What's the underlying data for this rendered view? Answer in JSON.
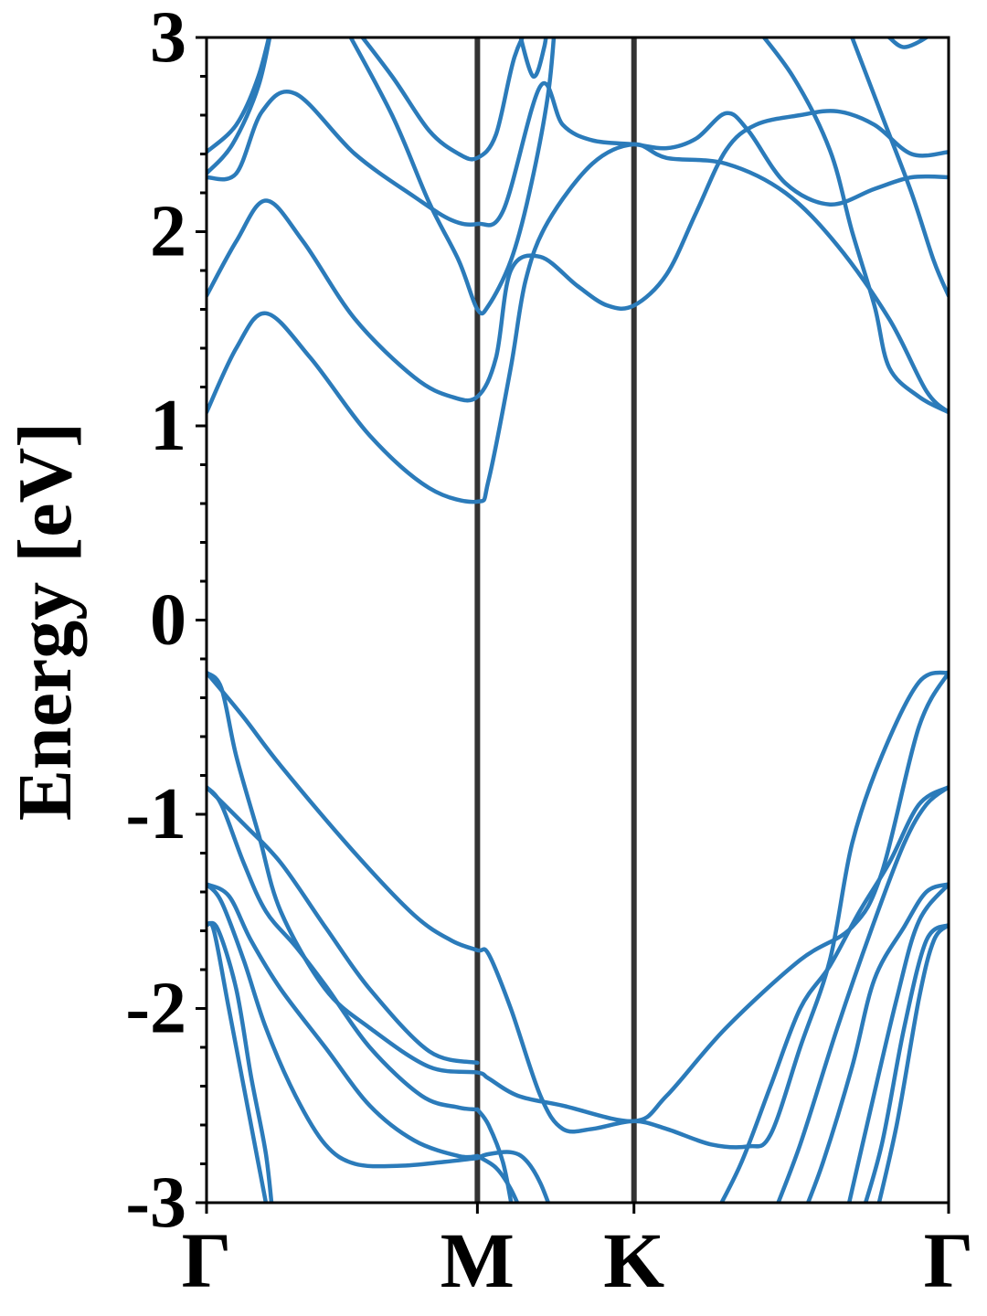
{
  "chart_data": {
    "type": "line",
    "title": "",
    "xlabel": "",
    "ylabel": "Energy [eV]",
    "ylim": [
      -3,
      3
    ],
    "yticks": [
      {
        "value": 3,
        "label": "3"
      },
      {
        "value": 2,
        "label": "2"
      },
      {
        "value": 1,
        "label": "1"
      },
      {
        "value": 0,
        "label": "0"
      },
      {
        "value": -1,
        "label": "-1"
      },
      {
        "value": -2,
        "label": "-2"
      },
      {
        "value": -3,
        "label": "-3"
      }
    ],
    "minor_tick_step": 0.2,
    "kpoints": [
      {
        "label": "Γ",
        "position": 0
      },
      {
        "label": "M",
        "position": 0.365
      },
      {
        "label": "K",
        "position": 0.576
      },
      {
        "label": "Γ",
        "position": 1
      }
    ],
    "xlim": [
      0,
      1
    ],
    "line_color": "#2b7bba",
    "kline_color": "#333333",
    "series": [
      {
        "points": [
          [
            0,
            2.41
          ],
          [
            0.04,
            2.55
          ],
          [
            0.07,
            2.8
          ],
          [
            0.09,
            3.1
          ]
        ]
      },
      {
        "points": [
          [
            0,
            2.3
          ],
          [
            0.035,
            2.45
          ],
          [
            0.07,
            2.75
          ],
          [
            0.09,
            3.1
          ]
        ]
      },
      {
        "points": [
          [
            0,
            2.28
          ],
          [
            0.04,
            2.3
          ],
          [
            0.075,
            2.62
          ],
          [
            0.12,
            2.71
          ],
          [
            0.2,
            2.4
          ],
          [
            0.28,
            2.18
          ],
          [
            0.33,
            2.06
          ],
          [
            0.365,
            2.04
          ],
          [
            0.4,
            2.11
          ],
          [
            0.45,
            2.75
          ],
          [
            0.48,
            2.55
          ],
          [
            0.52,
            2.47
          ],
          [
            0.576,
            2.45
          ],
          [
            0.62,
            2.43
          ],
          [
            0.66,
            2.48
          ],
          [
            0.7,
            2.61
          ],
          [
            0.73,
            2.52
          ],
          [
            0.78,
            2.25
          ],
          [
            0.84,
            2.14
          ],
          [
            0.9,
            2.22
          ],
          [
            0.95,
            2.28
          ],
          [
            1,
            2.28
          ]
        ]
      },
      {
        "points": [
          [
            0,
            1.67
          ],
          [
            0.04,
            1.95
          ],
          [
            0.08,
            2.16
          ],
          [
            0.13,
            1.95
          ],
          [
            0.2,
            1.55
          ],
          [
            0.28,
            1.25
          ],
          [
            0.33,
            1.15
          ],
          [
            0.365,
            1.15
          ],
          [
            0.39,
            1.35
          ],
          [
            0.41,
            1.8
          ],
          [
            0.45,
            1.87
          ],
          [
            0.5,
            1.72
          ],
          [
            0.54,
            1.62
          ],
          [
            0.576,
            1.62
          ],
          [
            0.62,
            1.78
          ],
          [
            0.66,
            2.1
          ],
          [
            0.7,
            2.42
          ],
          [
            0.74,
            2.55
          ],
          [
            0.8,
            2.6
          ],
          [
            0.85,
            2.62
          ],
          [
            0.9,
            2.55
          ],
          [
            0.95,
            2.4
          ],
          [
            1,
            2.41
          ]
        ]
      },
      {
        "points": [
          [
            0,
            1.07
          ],
          [
            0.04,
            1.4
          ],
          [
            0.08,
            1.58
          ],
          [
            0.14,
            1.35
          ],
          [
            0.22,
            0.95
          ],
          [
            0.3,
            0.68
          ],
          [
            0.365,
            0.61
          ],
          [
            0.38,
            0.72
          ],
          [
            0.41,
            1.3
          ],
          [
            0.43,
            1.75
          ],
          [
            0.46,
            2.05
          ],
          [
            0.52,
            2.35
          ],
          [
            0.576,
            2.45
          ],
          [
            0.62,
            2.38
          ],
          [
            0.7,
            2.35
          ],
          [
            0.78,
            2.2
          ],
          [
            0.85,
            1.93
          ],
          [
            0.92,
            1.55
          ],
          [
            0.97,
            1.18
          ],
          [
            1,
            1.07
          ]
        ]
      },
      {
        "points": [
          [
            0.19,
            3.1
          ],
          [
            0.25,
            2.8
          ],
          [
            0.3,
            2.52
          ],
          [
            0.34,
            2.4
          ],
          [
            0.365,
            2.38
          ],
          [
            0.39,
            2.5
          ],
          [
            0.415,
            2.9
          ],
          [
            0.44,
            3.1
          ]
        ]
      },
      {
        "points": [
          [
            0.18,
            3.1
          ],
          [
            0.25,
            2.6
          ],
          [
            0.3,
            2.15
          ],
          [
            0.34,
            1.85
          ],
          [
            0.365,
            1.6
          ],
          [
            0.38,
            1.62
          ],
          [
            0.41,
            1.85
          ],
          [
            0.435,
            2.2
          ],
          [
            0.46,
            2.7
          ],
          [
            0.47,
            3.1
          ]
        ]
      },
      {
        "points": [
          [
            0.42,
            3.05
          ],
          [
            0.44,
            2.8
          ],
          [
            0.455,
            2.95
          ],
          [
            0.46,
            3.1
          ]
        ]
      },
      {
        "points": [
          [
            0.86,
            3.1
          ],
          [
            0.91,
            2.6
          ],
          [
            0.95,
            2.2
          ],
          [
            0.98,
            1.85
          ],
          [
            1,
            1.67
          ]
        ]
      },
      {
        "points": [
          [
            0.73,
            3.1
          ],
          [
            0.79,
            2.8
          ],
          [
            0.84,
            2.42
          ],
          [
            0.87,
            2.0
          ],
          [
            0.9,
            1.62
          ],
          [
            0.92,
            1.3
          ],
          [
            0.96,
            1.15
          ],
          [
            1,
            1.07
          ]
        ]
      },
      {
        "points": [
          [
            0.92,
            3.0
          ],
          [
            0.94,
            2.95
          ],
          [
            0.97,
            3.0
          ],
          [
            0.98,
            3.05
          ]
        ]
      },
      {
        "points": [
          [
            0,
            -0.27
          ],
          [
            0.05,
            -0.5
          ],
          [
            0.1,
            -0.75
          ],
          [
            0.2,
            -1.2
          ],
          [
            0.28,
            -1.52
          ],
          [
            0.33,
            -1.65
          ],
          [
            0.365,
            -1.7
          ],
          [
            0.38,
            -1.72
          ],
          [
            0.41,
            -2.0
          ],
          [
            0.45,
            -2.45
          ],
          [
            0.48,
            -2.62
          ],
          [
            0.52,
            -2.62
          ],
          [
            0.576,
            -2.58
          ],
          [
            0.62,
            -2.62
          ],
          [
            0.68,
            -2.7
          ],
          [
            0.73,
            -2.71
          ],
          [
            0.76,
            -2.65
          ],
          [
            0.8,
            -2.2
          ],
          [
            0.84,
            -1.75
          ],
          [
            0.87,
            -1.15
          ],
          [
            0.91,
            -0.7
          ],
          [
            0.96,
            -0.32
          ],
          [
            1,
            -0.27
          ]
        ]
      },
      {
        "points": [
          [
            0,
            -0.27
          ],
          [
            0.02,
            -0.35
          ],
          [
            0.04,
            -0.7
          ],
          [
            0.07,
            -1.1
          ],
          [
            0.1,
            -1.5
          ],
          [
            0.16,
            -1.9
          ],
          [
            0.22,
            -2.1
          ],
          [
            0.3,
            -2.3
          ],
          [
            0.365,
            -2.33
          ],
          [
            0.38,
            -2.36
          ],
          [
            0.42,
            -2.45
          ],
          [
            0.48,
            -2.5
          ],
          [
            0.576,
            -2.58
          ],
          [
            0.62,
            -2.45
          ],
          [
            0.7,
            -2.1
          ],
          [
            0.8,
            -1.75
          ],
          [
            0.87,
            -1.58
          ],
          [
            0.91,
            -1.3
          ],
          [
            0.96,
            -0.55
          ],
          [
            1,
            -0.27
          ]
        ]
      },
      {
        "points": [
          [
            0,
            -0.86
          ],
          [
            0.05,
            -1.05
          ],
          [
            0.1,
            -1.25
          ],
          [
            0.16,
            -1.58
          ],
          [
            0.22,
            -1.9
          ],
          [
            0.3,
            -2.22
          ],
          [
            0.365,
            -2.28
          ]
        ]
      },
      {
        "points": [
          [
            0,
            -0.86
          ],
          [
            0.02,
            -0.95
          ],
          [
            0.05,
            -1.25
          ],
          [
            0.08,
            -1.5
          ],
          [
            0.12,
            -1.68
          ],
          [
            0.16,
            -1.88
          ],
          [
            0.22,
            -2.2
          ],
          [
            0.29,
            -2.45
          ],
          [
            0.34,
            -2.51
          ],
          [
            0.365,
            -2.52
          ]
        ]
      },
      {
        "points": [
          [
            0,
            -1.36
          ],
          [
            0.03,
            -1.42
          ],
          [
            0.06,
            -1.65
          ],
          [
            0.1,
            -1.9
          ],
          [
            0.16,
            -2.2
          ],
          [
            0.22,
            -2.5
          ],
          [
            0.28,
            -2.68
          ],
          [
            0.34,
            -2.76
          ],
          [
            0.365,
            -2.76
          ]
        ]
      },
      {
        "points": [
          [
            0,
            -1.36
          ],
          [
            0.02,
            -1.45
          ],
          [
            0.05,
            -1.75
          ],
          [
            0.08,
            -2.1
          ],
          [
            0.12,
            -2.45
          ],
          [
            0.16,
            -2.7
          ],
          [
            0.2,
            -2.8
          ],
          [
            0.26,
            -2.81
          ],
          [
            0.32,
            -2.79
          ],
          [
            0.365,
            -2.77
          ]
        ]
      },
      {
        "points": [
          [
            0,
            -1.57
          ],
          [
            0.015,
            -1.59
          ],
          [
            0.04,
            -1.9
          ],
          [
            0.06,
            -2.35
          ],
          [
            0.08,
            -2.75
          ],
          [
            0.09,
            -3.1
          ]
        ]
      },
      {
        "points": [
          [
            0,
            -1.57
          ],
          [
            0.01,
            -1.6
          ],
          [
            0.03,
            -2.0
          ],
          [
            0.05,
            -2.4
          ],
          [
            0.07,
            -2.8
          ],
          [
            0.085,
            -3.1
          ]
        ]
      },
      {
        "points": [
          [
            0.365,
            -2.52
          ],
          [
            0.38,
            -2.6
          ],
          [
            0.4,
            -2.8
          ],
          [
            0.415,
            -3.1
          ]
        ]
      },
      {
        "points": [
          [
            0.365,
            -2.76
          ],
          [
            0.39,
            -2.82
          ],
          [
            0.41,
            -2.93
          ],
          [
            0.43,
            -3.1
          ]
        ]
      },
      {
        "points": [
          [
            0.365,
            -2.77
          ],
          [
            0.38,
            -2.75
          ],
          [
            0.41,
            -2.74
          ],
          [
            0.43,
            -2.78
          ],
          [
            0.45,
            -2.9
          ],
          [
            0.47,
            -3.1
          ]
        ]
      },
      {
        "points": [
          [
            0.68,
            -3.1
          ],
          [
            0.72,
            -2.8
          ],
          [
            0.76,
            -2.4
          ],
          [
            0.8,
            -2.0
          ],
          [
            0.84,
            -1.78
          ],
          [
            0.88,
            -1.5
          ],
          [
            0.92,
            -1.25
          ],
          [
            0.96,
            -0.95
          ],
          [
            1,
            -0.86
          ]
        ]
      },
      {
        "points": [
          [
            0.76,
            -3.1
          ],
          [
            0.8,
            -2.7
          ],
          [
            0.85,
            -2.1
          ],
          [
            0.9,
            -1.55
          ],
          [
            0.94,
            -1.15
          ],
          [
            0.97,
            -0.95
          ],
          [
            1,
            -0.86
          ]
        ]
      },
      {
        "points": [
          [
            0.8,
            -3.1
          ],
          [
            0.83,
            -2.8
          ],
          [
            0.87,
            -2.3
          ],
          [
            0.9,
            -1.85
          ],
          [
            0.94,
            -1.58
          ],
          [
            0.97,
            -1.4
          ],
          [
            1,
            -1.36
          ]
        ]
      },
      {
        "points": [
          [
            0.86,
            -3.1
          ],
          [
            0.89,
            -2.6
          ],
          [
            0.93,
            -1.95
          ],
          [
            0.96,
            -1.55
          ],
          [
            1,
            -1.36
          ]
        ]
      },
      {
        "points": [
          [
            0.88,
            -3.1
          ],
          [
            0.91,
            -2.7
          ],
          [
            0.94,
            -2.1
          ],
          [
            0.97,
            -1.65
          ],
          [
            1,
            -1.57
          ]
        ]
      },
      {
        "points": [
          [
            0.9,
            -3.1
          ],
          [
            0.93,
            -2.6
          ],
          [
            0.96,
            -1.95
          ],
          [
            0.98,
            -1.65
          ],
          [
            1,
            -1.57
          ]
        ]
      }
    ]
  }
}
